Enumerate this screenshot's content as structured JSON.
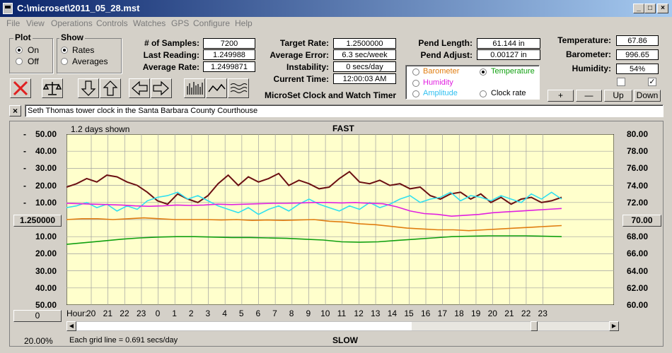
{
  "window": {
    "title": "C:\\microset\\2011_05_28.mst",
    "min": "_",
    "max": "□",
    "close": "×"
  },
  "menu": [
    "File",
    "View",
    "Operations",
    "Controls",
    "Watches",
    "GPS",
    "Configure",
    "Help"
  ],
  "plot_group": {
    "label": "Plot",
    "on": "On",
    "off": "Off",
    "selected": "On"
  },
  "show_group": {
    "label": "Show",
    "rates": "Rates",
    "averages": "Averages",
    "selected": "Rates"
  },
  "stats": {
    "samples_label": "# of Samples:",
    "samples": "7200",
    "last_label": "Last Reading:",
    "last": "1.249988",
    "avg_label": "Average Rate:",
    "avg": "1.2499871",
    "target_label": "Target Rate:",
    "target": "1.2500000",
    "avgerr_label": "Average Error:",
    "avgerr": "6.3 sec/week",
    "instab_label": "Instability:",
    "instab": "0 secs/day",
    "time_label": "Current Time:",
    "time": "12:00:03 AM",
    "pend_len_label": "Pend Length:",
    "pend_len": "61.144 in",
    "pend_adj_label": "Pend Adjust:",
    "pend_adj": "0.00127 in",
    "temp_label": "Temperature:",
    "temp": "67.86",
    "baro_label": "Barometer:",
    "baro": "996.65",
    "hum_label": "Humidity:",
    "hum": "54%"
  },
  "app_caption": "MicroSet Clock and Watch Timer",
  "sensor_options": {
    "barometer": "Barometer",
    "temperature": "Temperature",
    "humidity": "Humidity",
    "amplitude": "Amplitude",
    "clock_rate": "Clock rate",
    "selected": "Temperature"
  },
  "sensor_buttons": {
    "plus": "+",
    "minus": "—",
    "up": "Up",
    "down": "Down"
  },
  "checkbox_right_checked": "✓",
  "toolbar_icons": [
    "close-x-icon",
    "balance-scale-icon",
    "arrow-down-icon",
    "arrow-up-icon",
    "arrow-left-icon",
    "arrow-right-icon",
    "bars-plot-icon",
    "line-plot-icon",
    "wave-plot-icon"
  ],
  "description": {
    "close": "×",
    "text": "Seth Thomas tower clock in the Santa Barbara County Courthouse"
  },
  "chart_header": {
    "shown": "1.2 days shown",
    "fast": "FAST",
    "slow": "SLOW"
  },
  "chart_footer": {
    "zoom": "20.00%",
    "grid": "Each grid line = 0.691 secs/day",
    "hour_label": "Hour:"
  },
  "left_controls": {
    "center_value": "1.250000",
    "bottom_value": "0"
  },
  "right_controls": {
    "center_value": "70.00"
  },
  "colors": {
    "rate": "#6b0f12",
    "barometer": "#e07d10",
    "humidity": "#e020e0",
    "temperature": "#10a010",
    "amplitude": "#30e0f0",
    "plot_bg": "#ffffcc",
    "grid": "#a0a0a0"
  },
  "chart_data": {
    "type": "line",
    "xlabel": "Hour:",
    "x_ticks": [
      "20",
      "21",
      "22",
      "23",
      "0",
      "1",
      "2",
      "3",
      "4",
      "5",
      "6",
      "7",
      "8",
      "9",
      "10",
      "11",
      "12",
      "13",
      "14",
      "15",
      "16",
      "17",
      "18",
      "19",
      "20",
      "21",
      "22",
      "23"
    ],
    "left_axis": {
      "ticks": [
        "50.00",
        "40.00",
        "30.00",
        "20.00",
        "10.00",
        "1.250000",
        "10.00",
        "20.00",
        "30.00",
        "40.00",
        "50.00"
      ],
      "signs": [
        "-",
        "-",
        "-",
        "-",
        "-",
        "",
        "",
        "",
        "",
        "",
        ""
      ]
    },
    "right_axis": {
      "ticks": [
        "80.00",
        "78.00",
        "76.00",
        "74.00",
        "72.00",
        "70.00",
        "68.00",
        "66.00",
        "64.00",
        "62.00",
        "60.00"
      ],
      "range": [
        60,
        80
      ]
    },
    "series": [
      {
        "key": "rate",
        "values": [
          19,
          21,
          24,
          22,
          26,
          25,
          22,
          20,
          16,
          11,
          9,
          15,
          12,
          10,
          14,
          21,
          26,
          20,
          25,
          22,
          24,
          27,
          20,
          23,
          21,
          18,
          19,
          24,
          28,
          22,
          21,
          23,
          20,
          21,
          18,
          19,
          14,
          12,
          15,
          16,
          12,
          15,
          10,
          13,
          9,
          12,
          13,
          10,
          11,
          13
        ]
      },
      {
        "key": "amplitude",
        "values": [
          7,
          8,
          10,
          7,
          9,
          5,
          8,
          6,
          11,
          13,
          14,
          16,
          12,
          14,
          11,
          8,
          6,
          4,
          7,
          3,
          6,
          8,
          5,
          9,
          12,
          9,
          7,
          5,
          8,
          6,
          10,
          7,
          9,
          12,
          14,
          10,
          12,
          13,
          16,
          11,
          14,
          13,
          11,
          14,
          12,
          10,
          15,
          12,
          16,
          12
        ]
      },
      {
        "key": "humidity",
        "values": [
          71.9,
          71.85,
          71.8,
          71.75,
          71.7,
          71.6,
          71.55,
          71.6,
          71.7,
          71.65,
          71.7,
          71.8,
          71.75,
          71.8,
          71.85,
          71.9,
          71.9,
          71.95,
          72.0,
          72.0,
          71.95,
          72.0,
          71.9,
          71.85,
          71.5,
          71.0,
          70.7,
          70.6,
          70.4,
          70.5,
          70.6,
          70.8,
          70.9,
          71.0,
          71.1,
          71.2,
          71.3
        ]
      },
      {
        "key": "barometer",
        "values": [
          70.0,
          70.1,
          70.1,
          70.0,
          70.1,
          70.2,
          70.1,
          70.0,
          70.0,
          70.0,
          69.95,
          70.0,
          69.9,
          69.95,
          69.9,
          69.95,
          70.0,
          69.8,
          69.7,
          69.5,
          69.4,
          69.2,
          69.0,
          68.9,
          68.8,
          68.8,
          68.7,
          68.8,
          68.9,
          69.0,
          69.1,
          69.2,
          69.3
        ]
      },
      {
        "key": "temperature",
        "values": [
          67.1,
          67.3,
          67.5,
          67.7,
          67.85,
          67.95,
          68.0,
          68.0,
          67.95,
          67.9,
          67.9,
          67.85,
          67.8,
          67.7,
          67.6,
          67.4,
          67.35,
          67.4,
          67.55,
          67.7,
          67.85,
          68.0,
          68.05,
          68.1,
          68.1,
          68.1,
          68.05,
          68.0
        ]
      }
    ]
  }
}
